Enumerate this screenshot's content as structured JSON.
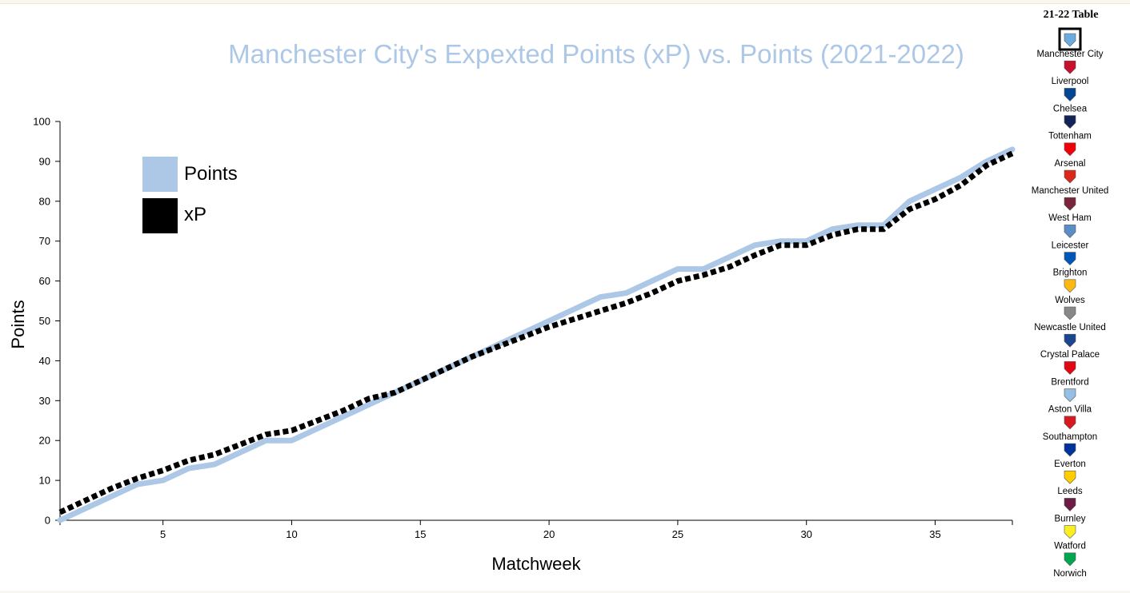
{
  "title": "Manchester City's Expexted Points (xP) vs. Points (2021-2022)",
  "chart_data": {
    "type": "line",
    "title": "Manchester City's Expexted Points (xP) vs. Points (2021-2022)",
    "xlabel": "Matchweek",
    "ylabel": "Points",
    "xlim": [
      1,
      38
    ],
    "ylim": [
      0,
      100
    ],
    "x_ticks": [
      5,
      10,
      15,
      20,
      25,
      30,
      35
    ],
    "y_ticks": [
      0,
      10,
      20,
      30,
      40,
      50,
      60,
      70,
      80,
      90,
      100
    ],
    "grid": false,
    "legend_position": "top-left",
    "x": [
      1,
      2,
      3,
      4,
      5,
      6,
      7,
      8,
      9,
      10,
      11,
      12,
      13,
      14,
      15,
      16,
      17,
      18,
      19,
      20,
      21,
      22,
      23,
      24,
      25,
      26,
      27,
      28,
      29,
      30,
      31,
      32,
      33,
      34,
      35,
      36,
      37,
      38
    ],
    "series": [
      {
        "name": "Points",
        "color": "#adc8e6",
        "style": "solid",
        "values": [
          0,
          3,
          6,
          9,
          10,
          13,
          14,
          17,
          20,
          20,
          23,
          26,
          29,
          32,
          35,
          38,
          41,
          44,
          47,
          50,
          53,
          56,
          57,
          60,
          63,
          63,
          66,
          69,
          70,
          70,
          73,
          74,
          74,
          80,
          83,
          86,
          90,
          93
        ]
      },
      {
        "name": "xP",
        "color": "#000000",
        "style": "dashed",
        "values": [
          2,
          5,
          8,
          10.5,
          12.5,
          15,
          16.5,
          19,
          21.5,
          22.5,
          25,
          27.5,
          30.5,
          32,
          35,
          38,
          41,
          43.5,
          46,
          48.5,
          50.5,
          52.5,
          54.5,
          57,
          60,
          61.5,
          63.5,
          66.5,
          69,
          69,
          71.5,
          73,
          73,
          78,
          80.5,
          84,
          89,
          92
        ]
      }
    ]
  },
  "legend": [
    {
      "label": "Points",
      "color": "#adc8e6"
    },
    {
      "label": "xP",
      "color": "#000000"
    }
  ],
  "table": {
    "title": "21-22 Table",
    "teams": [
      {
        "name": "Manchester City",
        "color": "#6cabdd",
        "icon": "man-city-badge-icon"
      },
      {
        "name": "Liverpool",
        "color": "#c8102e",
        "icon": "liverpool-badge-icon"
      },
      {
        "name": "Chelsea",
        "color": "#034694",
        "icon": "chelsea-badge-icon"
      },
      {
        "name": "Tottenham",
        "color": "#132257",
        "icon": "tottenham-badge-icon"
      },
      {
        "name": "Arsenal",
        "color": "#ef0107",
        "icon": "arsenal-badge-icon"
      },
      {
        "name": "Manchester United",
        "color": "#da291c",
        "icon": "man-united-badge-icon"
      },
      {
        "name": "West Ham",
        "color": "#7a263a",
        "icon": "west-ham-badge-icon"
      },
      {
        "name": "Leicester",
        "color": "#5b8ec7",
        "icon": "leicester-badge-icon"
      },
      {
        "name": "Brighton",
        "color": "#0057b8",
        "icon": "brighton-badge-icon"
      },
      {
        "name": "Wolves",
        "color": "#fdb913",
        "icon": "wolves-badge-icon"
      },
      {
        "name": "Newcastle United",
        "color": "#888888",
        "icon": "newcastle-badge-icon"
      },
      {
        "name": "Crystal Palace",
        "color": "#1b458f",
        "icon": "crystal-palace-badge-icon"
      },
      {
        "name": "Brentford",
        "color": "#e30613",
        "icon": "brentford-badge-icon"
      },
      {
        "name": "Aston Villa",
        "color": "#95bfe5",
        "icon": "aston-villa-badge-icon"
      },
      {
        "name": "Southampton",
        "color": "#d71920",
        "icon": "southampton-badge-icon"
      },
      {
        "name": "Everton",
        "color": "#003399",
        "icon": "everton-badge-icon"
      },
      {
        "name": "Leeds",
        "color": "#ffcd00",
        "icon": "leeds-badge-icon"
      },
      {
        "name": "Burnley",
        "color": "#6c1d45",
        "icon": "burnley-badge-icon"
      },
      {
        "name": "Watford",
        "color": "#fbee23",
        "icon": "watford-badge-icon"
      },
      {
        "name": "Norwich",
        "color": "#00a650",
        "icon": "norwich-badge-icon"
      }
    ],
    "selected": "Manchester City"
  }
}
